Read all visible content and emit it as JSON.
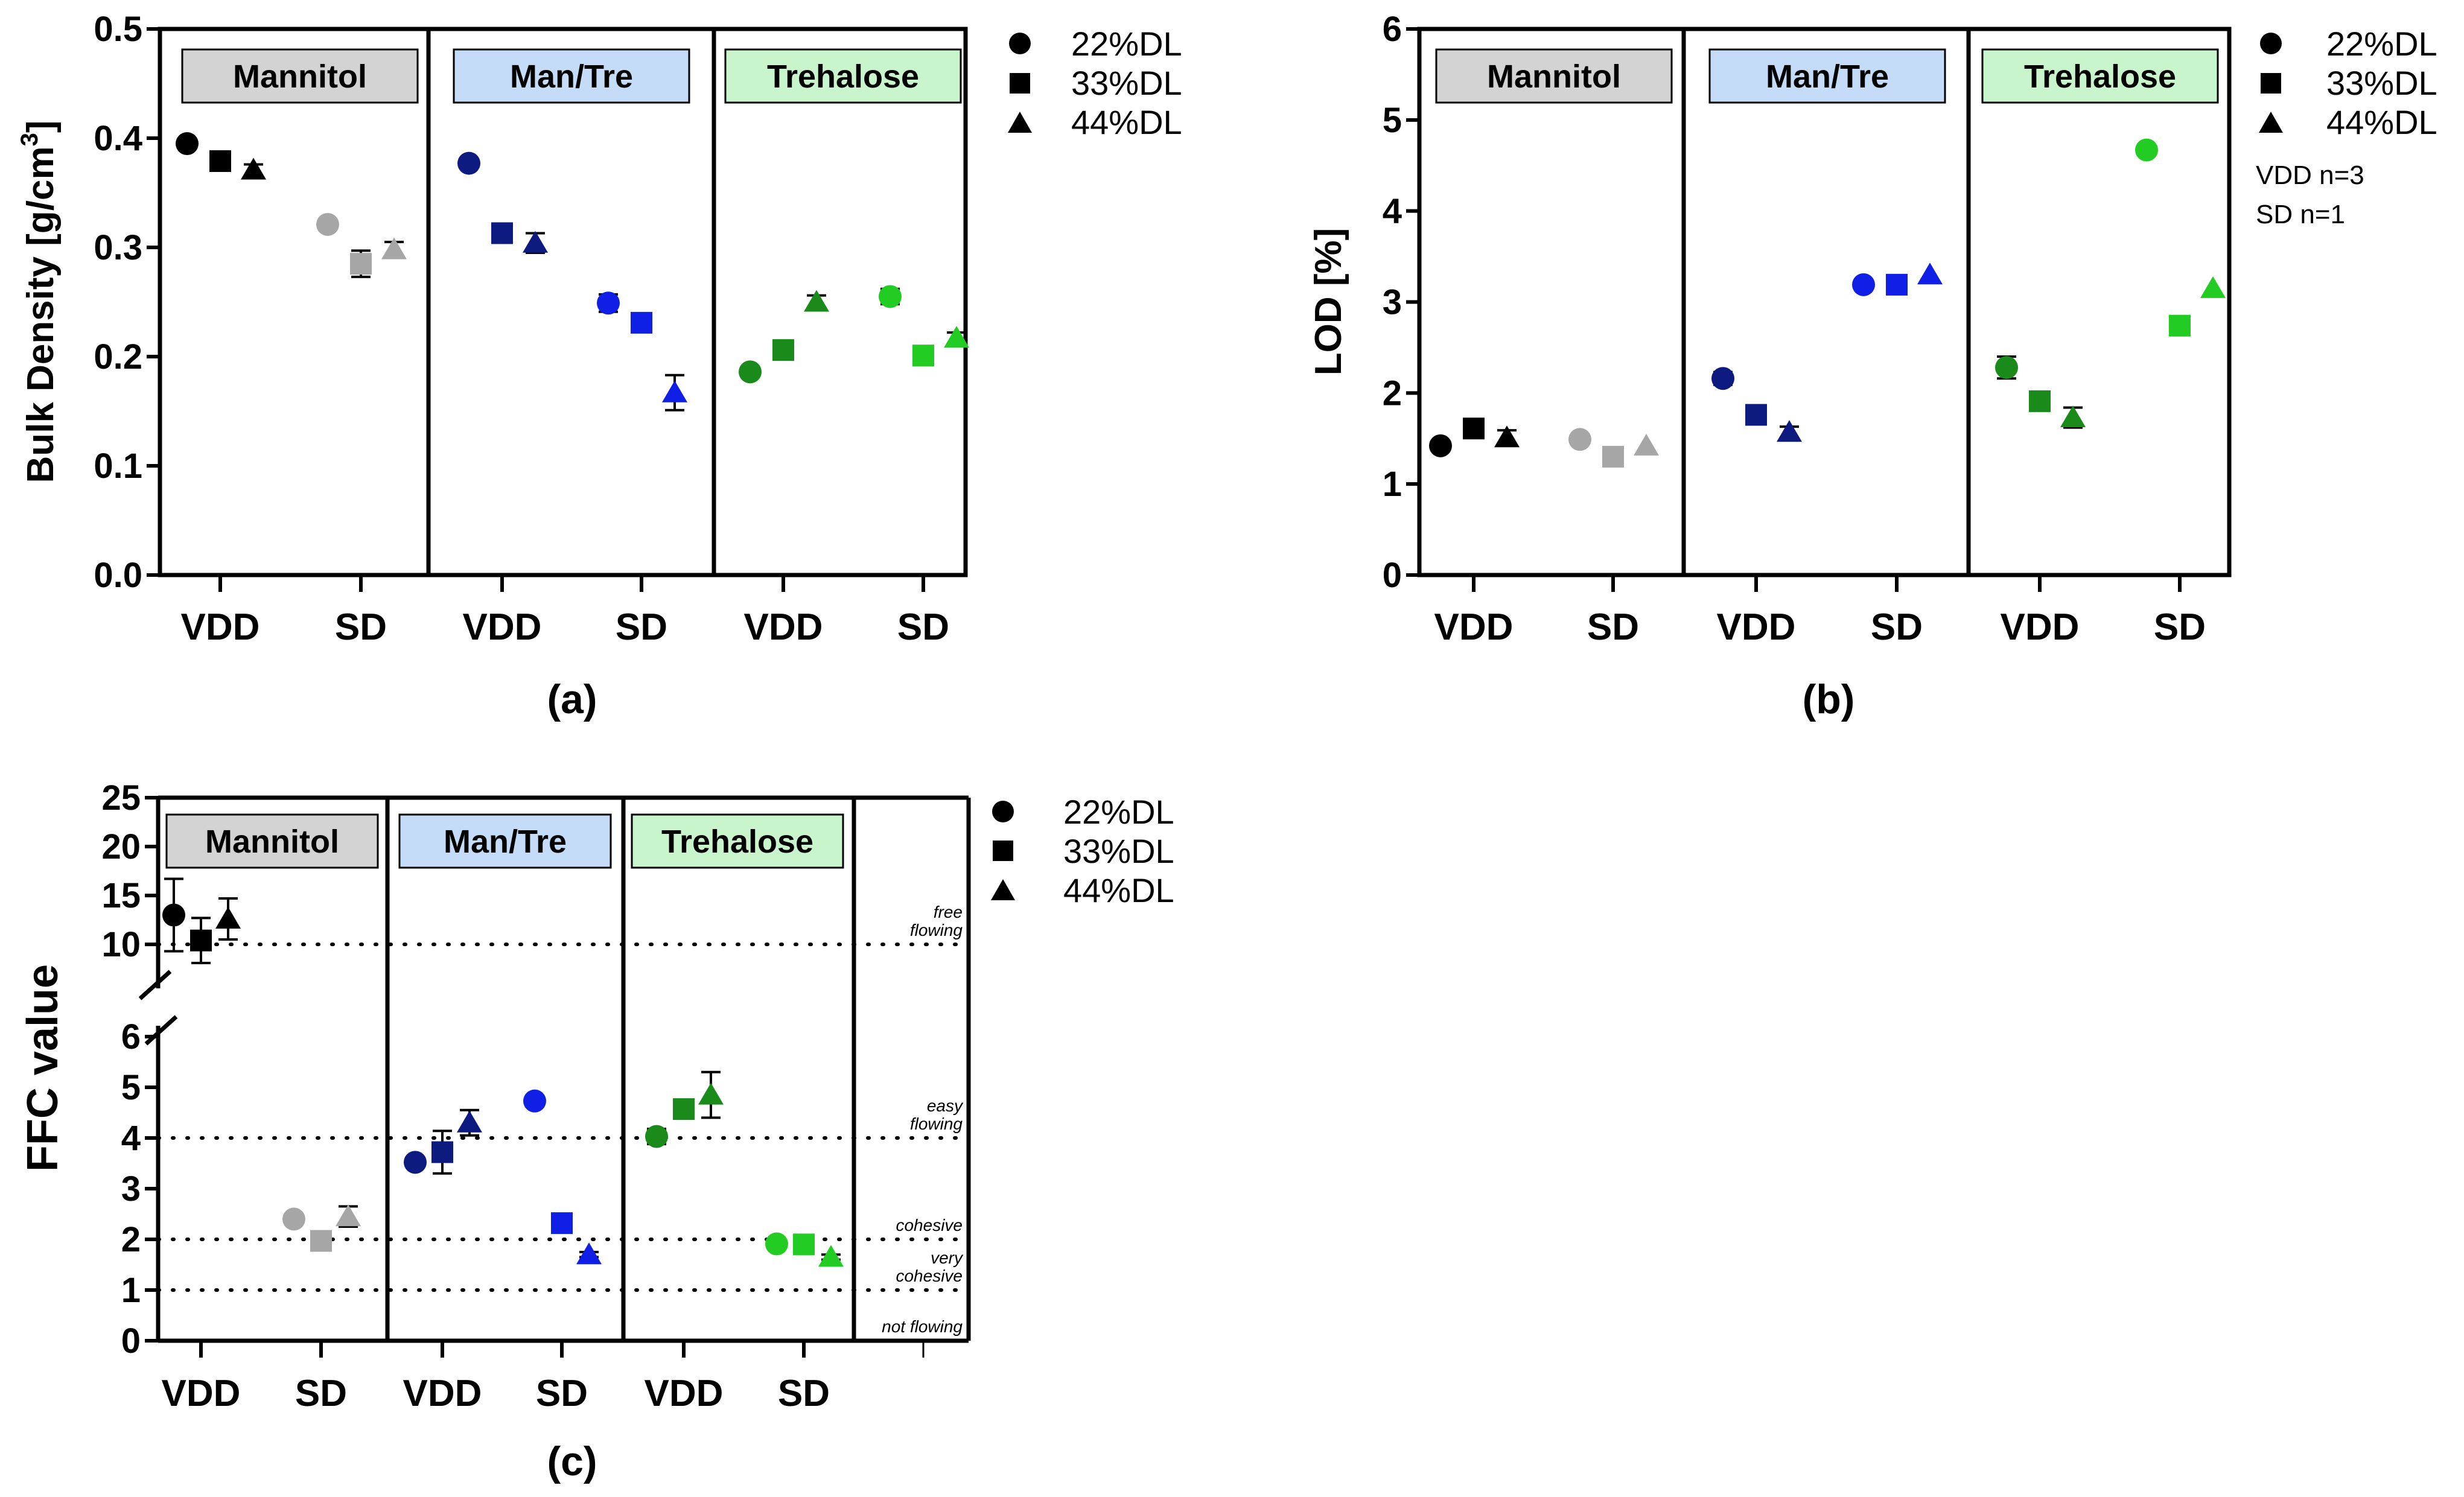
{
  "colors": {
    "mannitol_box": "#d3d3d3",
    "mantre_box": "#c5dcf8",
    "trehalose_box": "#c9f5cc",
    "man_vdd": "#000000",
    "man_sd": "#a6a6a6",
    "mt_vdd": "#0d1a80",
    "mt_sd": "#0f1fe6",
    "tre_vdd": "#1a8a1a",
    "tre_sd": "#22cc22"
  },
  "legend": {
    "circle": "22%DL",
    "square": "33%DL",
    "triangle": "44%DL"
  },
  "chart_data": [
    {
      "id": "a",
      "type": "scatter",
      "panel_label": "(a)",
      "ylabel": "Bulk Density [g/cm",
      "ylabel_sup": "3",
      "ylabel_end": "]",
      "ylim": [
        0,
        0.5
      ],
      "yticks": [
        "0.0",
        "0.1",
        "0.2",
        "0.3",
        "0.4",
        "0.5"
      ],
      "groups": [
        "Mannitol",
        "Man/Tre",
        "Trehalose"
      ],
      "categories": [
        "VDD",
        "SD",
        "VDD",
        "SD",
        "VDD",
        "SD"
      ],
      "series": [
        {
          "name": "22%DL",
          "values": [
            0.395,
            0.321,
            0.377,
            0.249,
            0.186,
            0.255
          ],
          "err": [
            0.003,
            0.004,
            0.003,
            0.008,
            0.003,
            0.007
          ]
        },
        {
          "name": "33%DL",
          "values": [
            0.379,
            0.285,
            0.313,
            0.231,
            0.206,
            0.201
          ],
          "err": [
            0.003,
            0.012,
            0.003,
            0.004,
            0.003,
            0.003
          ]
        },
        {
          "name": "44%DL",
          "values": [
            0.371,
            0.298,
            0.304,
            0.167,
            0.25,
            0.217
          ],
          "err": [
            0.005,
            0.007,
            0.009,
            0.016,
            0.006,
            0.005
          ]
        }
      ]
    },
    {
      "id": "b",
      "type": "scatter",
      "panel_label": "(b)",
      "ylabel": "LOD [%]",
      "ylim": [
        0,
        6
      ],
      "yticks": [
        "0",
        "1",
        "2",
        "3",
        "4",
        "5",
        "6"
      ],
      "groups": [
        "Mannitol",
        "Man/Tre",
        "Trehalose"
      ],
      "categories": [
        "VDD",
        "SD",
        "VDD",
        "SD",
        "VDD",
        "SD"
      ],
      "notes": [
        "VDD n=3",
        "SD n=1"
      ],
      "series": [
        {
          "name": "22%DL",
          "values": [
            1.42,
            1.49,
            2.16,
            3.19,
            2.28,
            4.67
          ],
          "err": [
            0.04,
            0,
            0.07,
            0,
            0.12,
            0
          ]
        },
        {
          "name": "33%DL",
          "values": [
            1.61,
            1.3,
            1.76,
            3.19,
            1.91,
            2.74
          ],
          "err": [
            0.03,
            0,
            0.04,
            0,
            0.04,
            0
          ]
        },
        {
          "name": "44%DL",
          "values": [
            1.51,
            1.42,
            1.57,
            3.3,
            1.73,
            3.15
          ],
          "err": [
            0.08,
            0,
            0.06,
            0,
            0.11,
            0
          ]
        }
      ]
    },
    {
      "id": "c",
      "type": "scatter",
      "panel_label": "(c)",
      "ylabel": "FFC value",
      "ylim_lower": [
        0,
        6
      ],
      "ylim_upper": [
        6,
        25
      ],
      "yticks_lower": [
        "0",
        "1",
        "2",
        "3",
        "4",
        "5",
        "6"
      ],
      "yticks_upper": [
        "10",
        "15",
        "20",
        "25"
      ],
      "groups": [
        "Mannitol",
        "Man/Tre",
        "Trehalose"
      ],
      "categories": [
        "VDD",
        "SD",
        "VDD",
        "SD",
        "VDD",
        "SD"
      ],
      "thresholds": [
        {
          "value": 10,
          "label": [
            "free",
            "flowing"
          ]
        },
        {
          "value": 4,
          "label": [
            "easy",
            "flowing"
          ]
        },
        {
          "value": 2,
          "label": [
            "cohesive"
          ]
        },
        {
          "value": 1,
          "label": [
            "very",
            "cohesive"
          ]
        },
        {
          "value": 0,
          "label": [
            "not flowing"
          ]
        }
      ],
      "series": [
        {
          "name": "22%DL",
          "values": [
            13.0,
            2.4,
            3.52,
            4.73,
            4.03,
            1.91
          ],
          "err": [
            3.7,
            0.05,
            0.1,
            0.1,
            0.15,
            0.05
          ]
        },
        {
          "name": "33%DL",
          "values": [
            10.4,
            1.97,
            3.72,
            2.32,
            4.57,
            1.9
          ],
          "err": [
            2.3,
            0.05,
            0.42,
            0.05,
            0.1,
            0.05
          ]
        },
        {
          "name": "44%DL",
          "values": [
            12.6,
            2.45,
            4.3,
            1.7,
            4.85,
            1.65
          ],
          "err": [
            2.1,
            0.2,
            0.25,
            0.05,
            0.45,
            0.05
          ]
        }
      ]
    }
  ]
}
